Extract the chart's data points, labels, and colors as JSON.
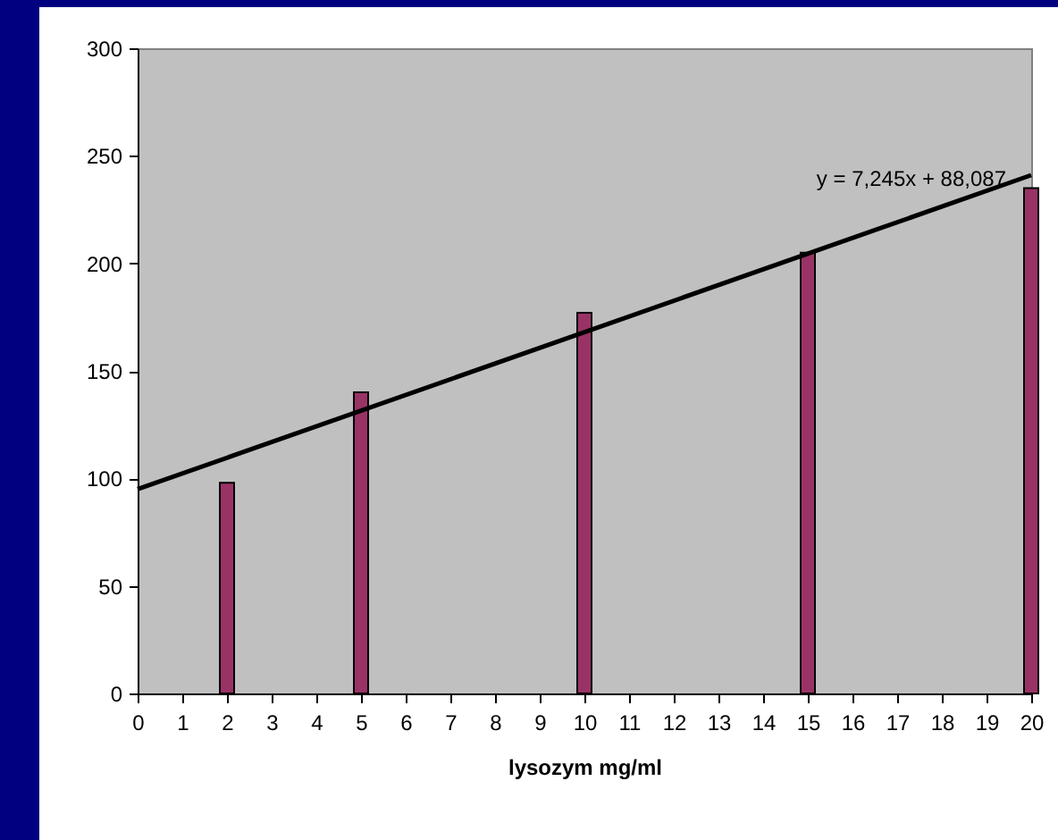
{
  "chart_data": {
    "type": "bar",
    "xlabel": "lysozym mg/ml",
    "x": [
      2,
      5,
      10,
      15,
      20
    ],
    "series": [
      {
        "color": "#993366",
        "values": [
          98,
          140,
          177,
          205,
          235
        ]
      },
      {
        "type": "line",
        "color": "#000000",
        "x": [
          0,
          20
        ],
        "values": [
          95,
          241
        ]
      }
    ],
    "xlim": [
      0,
      20
    ],
    "xticks": [
      0,
      1,
      2,
      3,
      4,
      5,
      6,
      7,
      8,
      9,
      10,
      11,
      12,
      13,
      14,
      15,
      16,
      17,
      18,
      19,
      20
    ],
    "ylim": [
      0,
      300
    ],
    "yticks": [
      0,
      50,
      100,
      150,
      200,
      250,
      300
    ],
    "annotations": [
      "y = 7,245x + 88,087"
    ],
    "grid": false
  }
}
